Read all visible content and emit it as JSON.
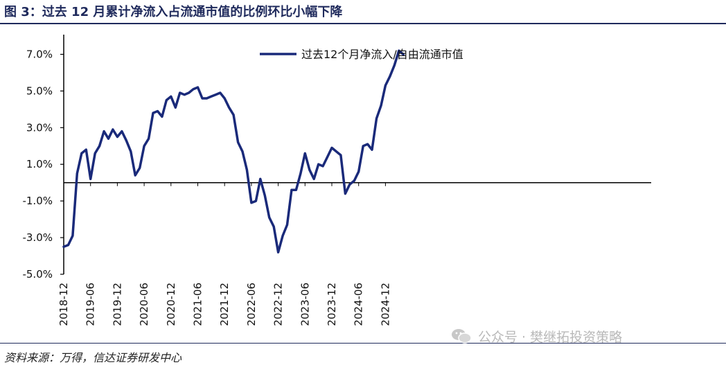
{
  "title": "图 3：过去 12 月累计净流入占流通市值的比例环比小幅下降",
  "source": "资料来源：万得，信达证券研发中心",
  "watermark": "公众号 · 樊继拓投资策略",
  "colors": {
    "line": "#1a2a7a",
    "title": "#1f2a5c",
    "axis": "#000000"
  },
  "chart_data": {
    "type": "line",
    "title": "过去 12 月累计净流入占流通市值的比例环比小幅下降",
    "xlabel": "",
    "ylabel": "",
    "ylim": [
      -5.0,
      8.0
    ],
    "yticks": [
      -5.0,
      -3.0,
      -1.0,
      1.0,
      3.0,
      5.0,
      7.0
    ],
    "ytick_labels": [
      "-5.0%",
      "-3.0%",
      "-1.0%",
      "1.0%",
      "3.0%",
      "5.0%",
      "7.0%"
    ],
    "xtick_labels": [
      "2018-12",
      "2019-06",
      "2019-12",
      "2020-06",
      "2020-12",
      "2021-06",
      "2021-12",
      "2022-06",
      "2022-12",
      "2023-06",
      "2023-12",
      "2024-06",
      "2024-12"
    ],
    "xtick_step": 6,
    "legend": {
      "position": "top-center",
      "entries": [
        "过去12个月净流入/自由流通市值"
      ]
    },
    "series": [
      {
        "name": "过去12个月净流入/自由流通市值",
        "values": [
          -3.5,
          -3.4,
          -2.9,
          0.5,
          1.6,
          1.8,
          0.2,
          1.6,
          2.0,
          2.8,
          2.4,
          2.9,
          2.5,
          2.8,
          2.3,
          1.7,
          0.4,
          0.8,
          2.0,
          2.4,
          3.8,
          3.9,
          3.6,
          4.5,
          4.7,
          4.1,
          4.9,
          4.8,
          4.9,
          5.1,
          5.2,
          4.6,
          4.6,
          4.7,
          4.8,
          4.9,
          4.6,
          4.1,
          3.7,
          2.2,
          1.7,
          0.7,
          -1.1,
          -1.0,
          0.2,
          -0.7,
          -1.9,
          -2.4,
          -3.8,
          -2.9,
          -2.3,
          -0.4,
          -0.4,
          0.5,
          1.6,
          0.7,
          0.2,
          1.0,
          0.9,
          1.4,
          1.9,
          1.7,
          1.5,
          -0.6,
          -0.1,
          0.1,
          0.6,
          2.0,
          2.1,
          1.8,
          3.5,
          4.2,
          5.3,
          5.8,
          6.4,
          7.2,
          7.0
        ]
      }
    ]
  }
}
